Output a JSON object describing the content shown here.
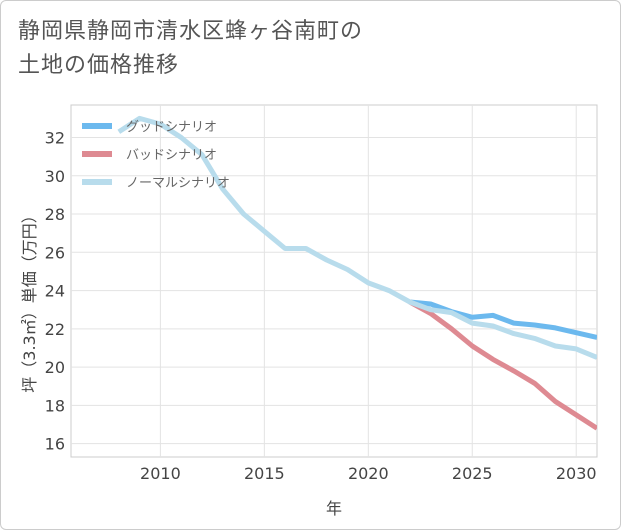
{
  "title_line1": "静岡県静岡市清水区蜂ヶ谷南町の",
  "title_line2": "土地の価格推移",
  "chart_data": {
    "type": "line",
    "xlabel": "年",
    "ylabel": "坪（3.3㎡）単価（万円）",
    "xlim": [
      2005.7,
      2031
    ],
    "ylim": [
      15.3,
      33.7
    ],
    "xticks": [
      2010,
      2015,
      2020,
      2025,
      2030
    ],
    "yticks": [
      16,
      18,
      20,
      22,
      24,
      26,
      28,
      30,
      32
    ],
    "grid": true,
    "legend_position": "top-left",
    "series": [
      {
        "name": "グッドシナリオ",
        "color": "#6cb9ee",
        "x": [
          2022,
          2023,
          2024,
          2025,
          2026,
          2027,
          2028,
          2029,
          2030,
          2031
        ],
        "y": [
          23.4,
          23.3,
          22.9,
          22.6,
          22.7,
          22.3,
          22.2,
          22.05,
          21.8,
          21.55
        ]
      },
      {
        "name": "バッドシナリオ",
        "color": "#de8a92",
        "x": [
          2022,
          2023,
          2024,
          2025,
          2026,
          2027,
          2028,
          2029,
          2030,
          2031
        ],
        "y": [
          23.4,
          22.8,
          22.0,
          21.1,
          20.4,
          19.8,
          19.15,
          18.2,
          17.5,
          16.8
        ]
      },
      {
        "name": "ノーマルシナリオ",
        "color": "#b8dcec",
        "x": [
          2008,
          2009,
          2010,
          2011,
          2012,
          2013,
          2014,
          2015,
          2016,
          2017,
          2018,
          2019,
          2020,
          2021,
          2022,
          2023,
          2024,
          2025,
          2026,
          2027,
          2028,
          2029,
          2030,
          2031
        ],
        "y": [
          32.3,
          33.0,
          32.7,
          32.0,
          31.1,
          29.3,
          28.0,
          27.1,
          26.2,
          26.2,
          25.6,
          25.1,
          24.4,
          24.0,
          23.4,
          23.0,
          22.85,
          22.3,
          22.15,
          21.75,
          21.5,
          21.1,
          20.95,
          20.5
        ]
      }
    ]
  }
}
